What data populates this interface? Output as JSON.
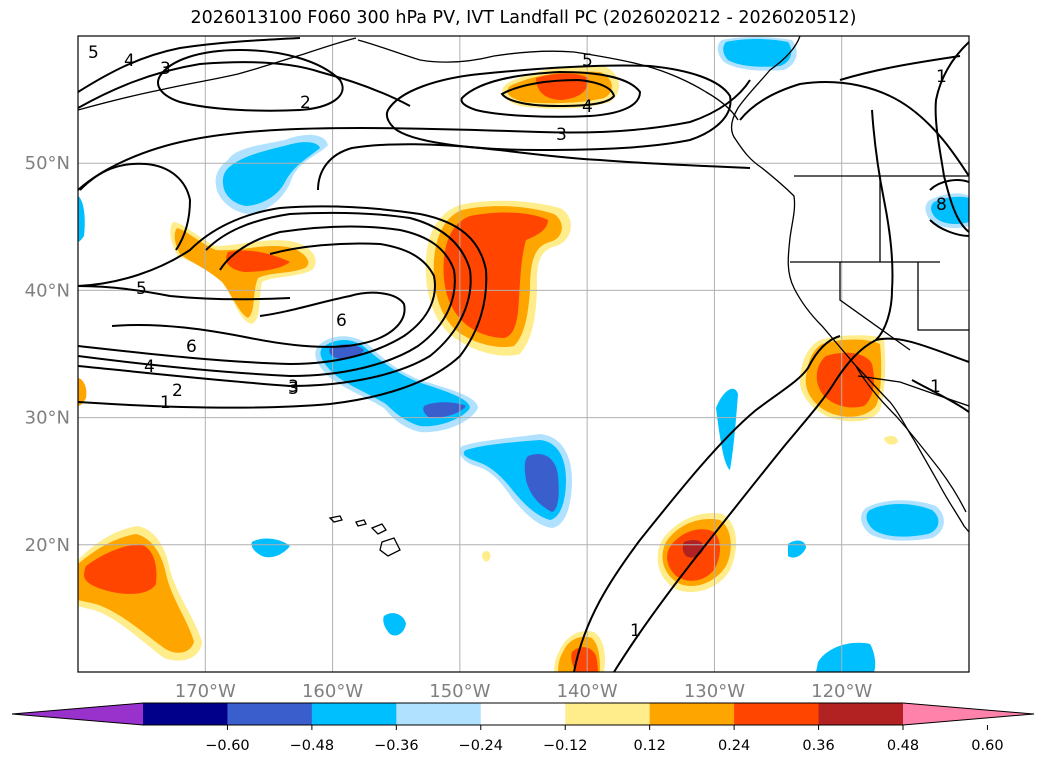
{
  "title": "2026013100 F060 300 hPa PV, IVT Landfall PC (2026020212 - 2026020512)",
  "map": {
    "lon_range": [
      -180,
      -110
    ],
    "lat_range": [
      10,
      60
    ],
    "lat_labels": [
      {
        "value": 50,
        "text": "50°N"
      },
      {
        "value": 40,
        "text": "40°N"
      },
      {
        "value": 30,
        "text": "30°N"
      },
      {
        "value": 20,
        "text": "20°N"
      }
    ],
    "lon_labels": [
      {
        "value": -170,
        "text": "170°W"
      },
      {
        "value": -160,
        "text": "160°W"
      },
      {
        "value": -150,
        "text": "150°W"
      },
      {
        "value": -140,
        "text": "140°W"
      },
      {
        "value": -130,
        "text": "130°W"
      },
      {
        "value": -120,
        "text": "120°W"
      }
    ],
    "contour_labels": [
      "5",
      "4",
      "3",
      "2",
      "3",
      "4",
      "5",
      "3",
      "5",
      "6",
      "6",
      "4",
      "3",
      "2",
      "1",
      "1",
      "1",
      "1",
      "8"
    ]
  },
  "colorbar": {
    "colors": [
      "#9932cc",
      "#00008b",
      "#3a5fcd",
      "#00bfff",
      "#b0e2ff",
      "#ffffff",
      "#ffec8b",
      "#ffa500",
      "#ff4500",
      "#b22222",
      "#ff82ab"
    ],
    "tick_labels": [
      "−0.60",
      "−0.48",
      "−0.36",
      "−0.24",
      "−0.12",
      "0.12",
      "0.24",
      "0.36",
      "0.48",
      "0.60"
    ]
  },
  "colors": {
    "ocean": "#ffffff",
    "gridline": "#b0b0b0",
    "coastline": "#000000",
    "contour": "#000000",
    "light_blue": "#b0e2ff",
    "blue": "#00bfff",
    "royal_blue": "#3a5fcd",
    "yellow": "#ffec8b",
    "orange": "#ffa500",
    "red_orange": "#ff4500",
    "firebrick": "#b22222"
  }
}
